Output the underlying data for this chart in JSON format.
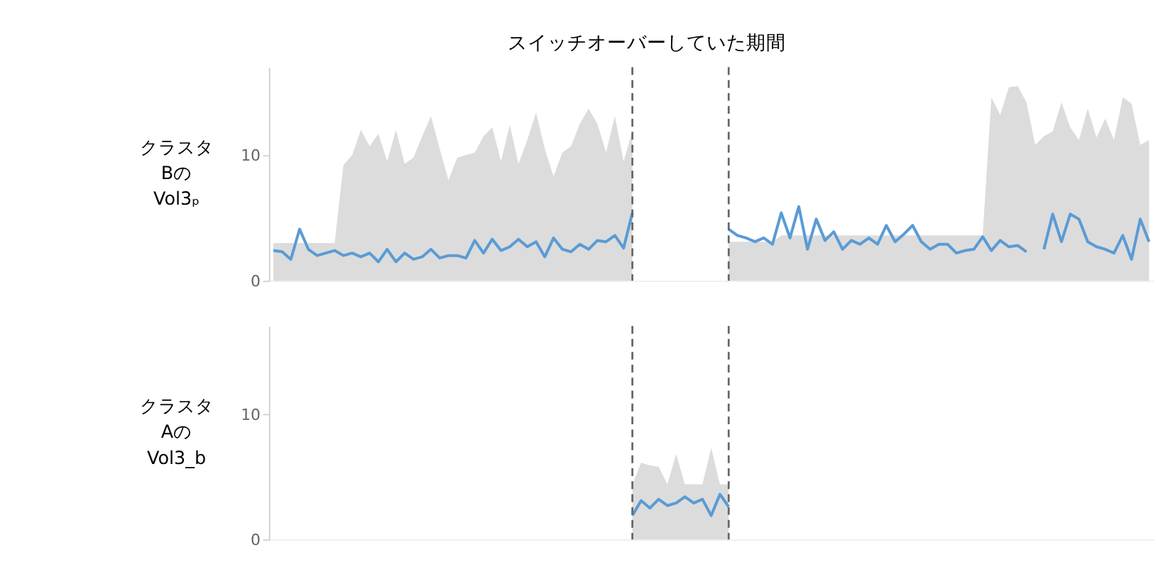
{
  "chart_data": [
    {
      "type": "line",
      "title": "スイッチオーバーしていた期間",
      "ylabel": "クラスタ\nBの\nVol3ₚ",
      "ylim": [
        0,
        17
      ],
      "yticks": [
        0,
        10
      ],
      "tick_labels": "y",
      "grid": false,
      "categories": [
        null,
        null,
        null,
        null,
        null,
        null,
        null,
        null,
        null,
        null,
        null,
        null,
        null,
        null,
        null,
        null,
        null,
        null,
        null,
        null,
        null,
        null,
        null,
        null,
        null,
        null,
        null,
        null,
        null,
        null,
        null,
        null,
        null,
        null,
        null,
        null,
        null,
        null,
        null,
        null,
        null,
        null,
        null,
        null,
        null,
        null,
        null,
        null,
        null,
        null,
        null,
        null,
        null,
        null,
        null,
        null,
        null,
        null,
        null,
        null,
        null,
        null,
        null,
        null,
        null,
        null,
        null,
        null,
        null,
        null,
        null,
        null,
        null,
        null,
        null,
        null,
        null,
        null,
        null,
        null,
        null,
        null,
        null,
        null,
        null,
        null,
        null,
        null,
        null,
        null,
        null,
        null,
        null,
        null,
        null,
        null,
        null,
        null,
        null,
        null,
        null
      ],
      "series": [
        {
          "type": "area",
          "color": "#dcdcdc",
          "values": [
            3.0,
            3.0,
            3.0,
            3.0,
            3.0,
            3.0,
            3.0,
            3.0,
            9.2,
            10.0,
            12.0,
            10.7,
            11.7,
            9.5,
            12.0,
            9.3,
            9.8,
            11.5,
            13.1,
            10.5,
            8.0,
            9.8,
            10.0,
            10.2,
            11.5,
            12.2,
            9.5,
            12.4,
            9.3,
            11.2,
            13.4,
            10.5,
            8.3,
            10.2,
            10.7,
            12.5,
            13.7,
            12.5,
            10.2,
            13.1,
            9.5,
            11.9,
            null,
            null,
            null,
            null,
            null,
            null,
            null,
            null,
            null,
            null,
            3.1,
            3.1,
            3.1,
            3.1,
            3.1,
            3.1,
            3.6,
            3.6,
            3.6,
            3.6,
            3.6,
            3.6,
            3.6,
            3.6,
            3.6,
            3.6,
            3.6,
            3.6,
            3.6,
            3.6,
            3.6,
            3.6,
            3.6,
            3.6,
            3.6,
            3.6,
            3.6,
            3.6,
            3.6,
            3.6,
            14.6,
            13.2,
            15.4,
            15.5,
            14.2,
            10.8,
            11.5,
            11.9,
            14.2,
            12.2,
            11.2,
            13.7,
            11.4,
            12.9,
            11.2,
            14.6,
            14.1,
            10.8,
            11.2
          ]
        },
        {
          "color": "#5a9bd4",
          "values": [
            2.4,
            2.3,
            1.7,
            4.1,
            2.5,
            2.0,
            2.2,
            2.4,
            2.0,
            2.2,
            1.9,
            2.2,
            1.5,
            2.5,
            1.5,
            2.2,
            1.7,
            1.9,
            2.5,
            1.8,
            2.0,
            2.0,
            1.8,
            3.2,
            2.2,
            3.3,
            2.4,
            2.7,
            3.3,
            2.7,
            3.1,
            1.9,
            3.4,
            2.5,
            2.3,
            2.9,
            2.5,
            3.2,
            3.1,
            3.6,
            2.6,
            5.4,
            null,
            null,
            null,
            null,
            null,
            null,
            null,
            null,
            null,
            null,
            4.1,
            3.6,
            3.4,
            3.1,
            3.4,
            2.9,
            5.4,
            3.4,
            5.9,
            2.5,
            4.9,
            3.2,
            3.9,
            2.5,
            3.2,
            2.9,
            3.4,
            2.9,
            4.4,
            3.1,
            3.7,
            4.4,
            3.1,
            2.5,
            2.9,
            2.9,
            2.2,
            2.4,
            2.5,
            3.5,
            2.4,
            3.2,
            2.7,
            2.8,
            2.3,
            null,
            2.5,
            5.3,
            3.1,
            5.3,
            4.9,
            3.1,
            2.7,
            2.5,
            2.2,
            3.6,
            1.7,
            4.9,
            3.1
          ]
        }
      ]
    },
    {
      "type": "line",
      "ylabel": "クラスタ\nAの\nVol3_b",
      "ylim": [
        0,
        17
      ],
      "yticks": [
        0,
        10
      ],
      "tick_labels": "y",
      "grid": false,
      "categories": [
        null,
        null,
        null,
        null,
        null,
        null,
        null,
        null,
        null,
        null,
        null,
        null,
        null,
        null,
        null,
        null,
        null,
        null,
        null,
        null,
        null,
        null,
        null,
        null,
        null,
        null,
        null,
        null,
        null,
        null,
        null,
        null,
        null,
        null,
        null,
        null,
        null,
        null,
        null,
        null,
        null,
        null,
        null,
        null,
        null,
        null,
        null,
        null,
        null,
        null,
        null,
        null,
        null,
        null,
        null,
        null,
        null,
        null,
        null,
        null,
        null,
        null,
        null,
        null,
        null,
        null,
        null,
        null,
        null,
        null,
        null,
        null,
        null,
        null,
        null,
        null,
        null,
        null,
        null,
        null,
        null,
        null,
        null,
        null,
        null,
        null,
        null,
        null,
        null,
        null,
        null,
        null,
        null,
        null,
        null,
        null,
        null,
        null,
        null,
        null,
        null
      ],
      "series": [
        {
          "type": "area",
          "color": "#dcdcdc",
          "values": [
            null,
            null,
            null,
            null,
            null,
            null,
            null,
            null,
            null,
            null,
            null,
            null,
            null,
            null,
            null,
            null,
            null,
            null,
            null,
            null,
            null,
            null,
            null,
            null,
            null,
            null,
            null,
            null,
            null,
            null,
            null,
            null,
            null,
            null,
            null,
            null,
            null,
            null,
            null,
            null,
            null,
            4.4,
            6.1,
            5.9,
            5.8,
            4.4,
            6.8,
            4.4,
            4.4,
            4.4,
            7.3,
            4.4,
            4.4,
            null,
            null,
            null,
            null,
            null,
            null,
            null,
            null,
            null,
            null,
            null,
            null,
            null,
            null,
            null,
            null,
            null,
            null,
            null,
            null,
            null,
            null,
            null,
            null,
            null,
            null,
            null,
            null,
            null,
            null,
            null,
            null,
            null,
            null,
            null,
            null,
            null,
            null,
            null,
            null,
            null,
            null,
            null,
            null,
            null,
            null,
            null,
            null
          ]
        },
        {
          "color": "#5a9bd4",
          "values": [
            null,
            null,
            null,
            null,
            null,
            null,
            null,
            null,
            null,
            null,
            null,
            null,
            null,
            null,
            null,
            null,
            null,
            null,
            null,
            null,
            null,
            null,
            null,
            null,
            null,
            null,
            null,
            null,
            null,
            null,
            null,
            null,
            null,
            null,
            null,
            null,
            null,
            null,
            null,
            null,
            null,
            1.9,
            3.1,
            2.5,
            3.2,
            2.7,
            2.9,
            3.4,
            2.9,
            3.2,
            1.9,
            3.6,
            2.6,
            null,
            null,
            null,
            null,
            null,
            null,
            null,
            null,
            null,
            null,
            null,
            null,
            null,
            null,
            null,
            null,
            null,
            null,
            null,
            null,
            null,
            null,
            null,
            null,
            null,
            null,
            null,
            null,
            null,
            null,
            null,
            null,
            null,
            null,
            null,
            null,
            null,
            null,
            null,
            null,
            null,
            null,
            null,
            null,
            null,
            null,
            null,
            null
          ]
        }
      ]
    }
  ]
}
